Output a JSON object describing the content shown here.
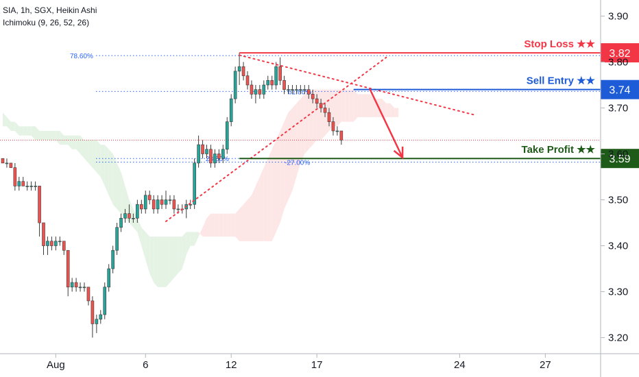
{
  "header": {
    "symbol_line": "SIA, 1h, SGX, Heikin Ashi",
    "indicator_line": "Ichimoku (9, 26, 52, 26)"
  },
  "chart_data": {
    "type": "candlestick",
    "ylim": [
      3.165,
      3.935
    ],
    "y_ticks": [
      3.2,
      3.3,
      3.4,
      3.5,
      3.6,
      3.7,
      3.8,
      3.9
    ],
    "y_tick_labels": [
      "3.20",
      "3.30",
      "3.40",
      "3.50",
      "3.60",
      "3.70",
      "3.80",
      "3.90"
    ],
    "x_ticks": [
      {
        "label": "Aug",
        "bar": 13
      },
      {
        "label": "6",
        "bar": 35
      },
      {
        "label": "12",
        "bar": 56
      },
      {
        "label": "17",
        "bar": 77
      },
      {
        "label": "24",
        "bar": 112
      },
      {
        "label": "27",
        "bar": 133
      }
    ],
    "candles": [
      [
        3.59,
        3.59,
        3.58,
        3.58
      ],
      [
        3.58,
        3.59,
        3.57,
        3.58
      ],
      [
        3.58,
        3.58,
        3.57,
        3.57
      ],
      [
        3.57,
        3.58,
        3.52,
        3.53
      ],
      [
        3.53,
        3.55,
        3.52,
        3.54
      ],
      [
        3.54,
        3.55,
        3.53,
        3.53
      ],
      [
        3.53,
        3.54,
        3.52,
        3.53
      ],
      [
        3.53,
        3.54,
        3.52,
        3.53
      ],
      [
        3.53,
        3.54,
        3.52,
        3.53
      ],
      [
        3.53,
        3.53,
        3.42,
        3.45
      ],
      [
        3.45,
        3.45,
        3.38,
        3.4
      ],
      [
        3.4,
        3.42,
        3.38,
        3.41
      ],
      [
        3.41,
        3.42,
        3.39,
        3.4
      ],
      [
        3.4,
        3.42,
        3.39,
        3.41
      ],
      [
        3.41,
        3.42,
        3.4,
        3.41
      ],
      [
        3.41,
        3.41,
        3.38,
        3.39
      ],
      [
        3.39,
        3.39,
        3.29,
        3.31
      ],
      [
        3.31,
        3.33,
        3.3,
        3.32
      ],
      [
        3.32,
        3.33,
        3.3,
        3.31
      ],
      [
        3.31,
        3.32,
        3.3,
        3.31
      ],
      [
        3.31,
        3.32,
        3.3,
        3.31
      ],
      [
        3.31,
        3.31,
        3.27,
        3.28
      ],
      [
        3.28,
        3.29,
        3.2,
        3.23
      ],
      [
        3.23,
        3.25,
        3.21,
        3.24
      ],
      [
        3.24,
        3.26,
        3.23,
        3.25
      ],
      [
        3.25,
        3.32,
        3.24,
        3.31
      ],
      [
        3.31,
        3.36,
        3.3,
        3.35
      ],
      [
        3.35,
        3.4,
        3.34,
        3.39
      ],
      [
        3.39,
        3.45,
        3.38,
        3.44
      ],
      [
        3.44,
        3.47,
        3.43,
        3.46
      ],
      [
        3.46,
        3.48,
        3.45,
        3.47
      ],
      [
        3.47,
        3.49,
        3.45,
        3.46
      ],
      [
        3.46,
        3.47,
        3.45,
        3.46
      ],
      [
        3.46,
        3.5,
        3.45,
        3.49
      ],
      [
        3.49,
        3.5,
        3.47,
        3.48
      ],
      [
        3.48,
        3.52,
        3.47,
        3.51
      ],
      [
        3.51,
        3.52,
        3.49,
        3.5
      ],
      [
        3.5,
        3.51,
        3.47,
        3.48
      ],
      [
        3.48,
        3.51,
        3.47,
        3.5
      ],
      [
        3.5,
        3.51,
        3.48,
        3.49
      ],
      [
        3.49,
        3.52,
        3.48,
        3.5
      ],
      [
        3.5,
        3.51,
        3.49,
        3.5
      ],
      [
        3.5,
        3.51,
        3.47,
        3.48
      ],
      [
        3.48,
        3.49,
        3.47,
        3.48
      ],
      [
        3.48,
        3.49,
        3.47,
        3.48
      ],
      [
        3.48,
        3.5,
        3.46,
        3.49
      ],
      [
        3.49,
        3.5,
        3.48,
        3.49
      ],
      [
        3.49,
        3.59,
        3.48,
        3.58
      ],
      [
        3.58,
        3.64,
        3.57,
        3.62
      ],
      [
        3.62,
        3.63,
        3.59,
        3.6
      ],
      [
        3.6,
        3.62,
        3.59,
        3.61
      ],
      [
        3.61,
        3.62,
        3.57,
        3.58
      ],
      [
        3.58,
        3.61,
        3.57,
        3.6
      ],
      [
        3.6,
        3.61,
        3.58,
        3.59
      ],
      [
        3.59,
        3.62,
        3.58,
        3.61
      ],
      [
        3.61,
        3.68,
        3.6,
        3.67
      ],
      [
        3.67,
        3.73,
        3.66,
        3.72
      ],
      [
        3.72,
        3.79,
        3.71,
        3.78
      ],
      [
        3.78,
        3.82,
        3.75,
        3.79
      ],
      [
        3.79,
        3.8,
        3.76,
        3.77
      ],
      [
        3.77,
        3.78,
        3.74,
        3.75
      ],
      [
        3.75,
        3.76,
        3.72,
        3.73
      ],
      [
        3.73,
        3.75,
        3.71,
        3.74
      ],
      [
        3.74,
        3.75,
        3.72,
        3.73
      ],
      [
        3.73,
        3.76,
        3.72,
        3.75
      ],
      [
        3.75,
        3.77,
        3.74,
        3.76
      ],
      [
        3.76,
        3.77,
        3.74,
        3.75
      ],
      [
        3.75,
        3.8,
        3.74,
        3.79
      ],
      [
        3.79,
        3.81,
        3.75,
        3.76
      ],
      [
        3.76,
        3.77,
        3.73,
        3.74
      ],
      [
        3.74,
        3.75,
        3.73,
        3.74
      ],
      [
        3.74,
        3.75,
        3.73,
        3.74
      ],
      [
        3.74,
        3.75,
        3.73,
        3.74
      ],
      [
        3.74,
        3.75,
        3.73,
        3.74
      ],
      [
        3.74,
        3.75,
        3.73,
        3.74
      ],
      [
        3.74,
        3.75,
        3.72,
        3.73
      ],
      [
        3.73,
        3.74,
        3.71,
        3.72
      ],
      [
        3.72,
        3.73,
        3.7,
        3.71
      ],
      [
        3.71,
        3.72,
        3.69,
        3.7
      ],
      [
        3.7,
        3.71,
        3.68,
        3.69
      ],
      [
        3.69,
        3.7,
        3.66,
        3.67
      ],
      [
        3.67,
        3.68,
        3.64,
        3.65
      ],
      [
        3.65,
        3.66,
        3.64,
        3.65
      ],
      [
        3.65,
        3.65,
        3.62,
        3.63
      ]
    ],
    "cloud": [
      [
        3.69,
        3.66
      ],
      [
        3.68,
        3.66
      ],
      [
        3.67,
        3.65
      ],
      [
        3.67,
        3.65
      ],
      [
        3.66,
        3.64
      ],
      [
        3.66,
        3.64
      ],
      [
        3.66,
        3.64
      ],
      [
        3.66,
        3.64
      ],
      [
        3.66,
        3.63
      ],
      [
        3.65,
        3.63
      ],
      [
        3.65,
        3.63
      ],
      [
        3.65,
        3.63
      ],
      [
        3.65,
        3.63
      ],
      [
        3.65,
        3.63
      ],
      [
        3.65,
        3.62
      ],
      [
        3.64,
        3.62
      ],
      [
        3.64,
        3.62
      ],
      [
        3.64,
        3.61
      ],
      [
        3.64,
        3.61
      ],
      [
        3.64,
        3.6
      ],
      [
        3.63,
        3.59
      ],
      [
        3.63,
        3.58
      ],
      [
        3.63,
        3.57
      ],
      [
        3.63,
        3.56
      ],
      [
        3.62,
        3.55
      ],
      [
        3.62,
        3.53
      ],
      [
        3.61,
        3.51
      ],
      [
        3.6,
        3.49
      ],
      [
        3.58,
        3.48
      ],
      [
        3.56,
        3.47
      ],
      [
        3.53,
        3.46
      ],
      [
        3.5,
        3.45
      ],
      [
        3.48,
        3.44
      ],
      [
        3.46,
        3.43
      ],
      [
        3.44,
        3.4
      ],
      [
        3.43,
        3.37
      ],
      [
        3.42,
        3.34
      ],
      [
        3.42,
        3.32
      ],
      [
        3.42,
        3.31
      ],
      [
        3.42,
        3.31
      ],
      [
        3.42,
        3.31
      ],
      [
        3.42,
        3.32
      ],
      [
        3.42,
        3.33
      ],
      [
        3.42,
        3.34
      ],
      [
        3.42,
        3.35
      ],
      [
        3.43,
        3.38
      ],
      [
        3.43,
        3.4
      ],
      [
        3.43,
        3.4
      ],
      [
        3.43,
        3.42
      ],
      [
        3.42,
        3.44
      ],
      [
        3.42,
        3.46
      ],
      [
        3.42,
        3.47
      ],
      [
        3.42,
        3.47
      ],
      [
        3.42,
        3.47
      ],
      [
        3.42,
        3.47
      ],
      [
        3.42,
        3.47
      ],
      [
        3.42,
        3.47
      ],
      [
        3.42,
        3.47
      ],
      [
        3.41,
        3.48
      ],
      [
        3.41,
        3.49
      ],
      [
        3.41,
        3.5
      ],
      [
        3.41,
        3.51
      ],
      [
        3.41,
        3.53
      ],
      [
        3.41,
        3.55
      ],
      [
        3.41,
        3.57
      ],
      [
        3.41,
        3.59
      ],
      [
        3.41,
        3.61
      ],
      [
        3.43,
        3.63
      ],
      [
        3.45,
        3.65
      ],
      [
        3.48,
        3.67
      ],
      [
        3.5,
        3.69
      ],
      [
        3.52,
        3.7
      ],
      [
        3.55,
        3.71
      ],
      [
        3.58,
        3.72
      ],
      [
        3.6,
        3.73
      ],
      [
        3.61,
        3.73
      ],
      [
        3.62,
        3.74
      ],
      [
        3.63,
        3.74
      ],
      [
        3.63,
        3.74
      ],
      [
        3.64,
        3.74
      ],
      [
        3.65,
        3.74
      ],
      [
        3.66,
        3.74
      ],
      [
        3.66,
        3.74
      ],
      [
        3.67,
        3.74
      ],
      [
        3.67,
        3.74
      ],
      [
        3.67,
        3.74
      ],
      [
        3.67,
        3.74
      ],
      [
        3.68,
        3.73
      ],
      [
        3.68,
        3.73
      ],
      [
        3.68,
        3.73
      ],
      [
        3.68,
        3.73
      ],
      [
        3.68,
        3.72
      ],
      [
        3.68,
        3.72
      ],
      [
        3.68,
        3.72
      ],
      [
        3.68,
        3.71
      ],
      [
        3.68,
        3.71
      ],
      [
        3.68,
        3.7
      ],
      [
        3.68,
        3.7
      ]
    ],
    "fib_levels": [
      {
        "label": "78.60%",
        "value": 3.814
      },
      {
        "label": "61.80%",
        "value": 3.736
      },
      {
        "label": "23.60%",
        "value": 3.59
      },
      {
        "label": "-27.00%",
        "value": 3.582
      }
    ],
    "trend_lines": [
      {
        "from": [
          58,
          3.815
        ],
        "to": [
          116,
          3.684
        ]
      },
      {
        "from": [
          40,
          3.453
        ],
        "to": [
          94,
          3.81
        ]
      }
    ],
    "current_price": 3.63,
    "levels": [
      {
        "name": "Stop Loss ★★",
        "value": 3.82,
        "color": "#f23645",
        "badge": "3.82",
        "from_bar": 58
      },
      {
        "name": "Sell Entry ★★",
        "value": 3.74,
        "color": "#1e5bd6",
        "badge": "3.74",
        "from_bar": 86
      },
      {
        "name": "Take Profit ★★",
        "value": 3.59,
        "color": "#1e5a18",
        "badge": "3.59",
        "from_bar": 58
      }
    ],
    "arrow": {
      "from": [
        90,
        3.741
      ],
      "to": [
        98,
        3.592
      ]
    },
    "colors": {
      "up": "#26a69a",
      "down": "#ef5350",
      "cloud_bear": "#fde6e6",
      "cloud_bull": "#e4f3e4",
      "fib": "#2962ff"
    }
  }
}
